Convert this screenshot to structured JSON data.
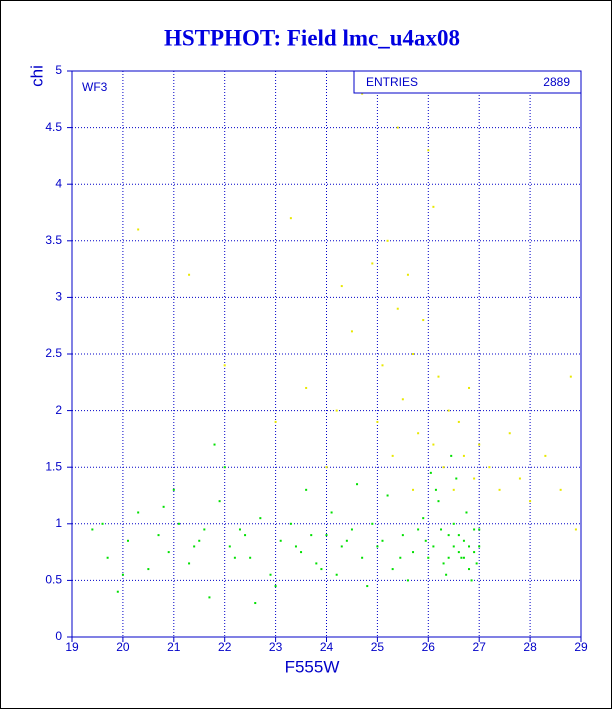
{
  "chart_data": {
    "type": "scatter",
    "title": "HSTPHOT: Field lmc_u4ax08",
    "x_label": "F555W",
    "y_label": "chi",
    "annotation": "WF3",
    "stats": {
      "label": "ENTRIES",
      "value": 2889
    },
    "xlim": [
      19,
      29
    ],
    "ylim": [
      0,
      5
    ],
    "xticks": [
      19,
      20,
      21,
      22,
      23,
      24,
      25,
      26,
      27,
      28,
      29
    ],
    "yticks": [
      0,
      0.5,
      1,
      1.5,
      2,
      2.5,
      3,
      3.5,
      4,
      4.5,
      5
    ],
    "grid": true,
    "series": [
      {
        "color": "#00e000",
        "x": [
          19.4,
          19.7,
          19.9,
          20.1,
          20.3,
          20.5,
          20.7,
          20.9,
          21.1,
          21.3,
          21.5,
          21.7,
          21.9,
          22.1,
          22.3,
          22.5,
          22.7,
          22.9,
          23.1,
          23.3,
          23.5,
          23.7,
          23.9,
          24.1,
          24.3,
          24.5,
          24.7,
          24.9,
          25.1,
          25.3,
          25.5,
          25.7,
          25.9,
          26.1,
          26.2,
          26.3,
          26.4,
          26.5,
          26.6,
          26.7,
          26.8,
          26.9,
          27.0,
          26.55,
          26.45,
          26.65,
          26.75,
          26.85,
          26.35,
          26.25,
          21.0,
          22.0,
          21.8,
          23.6,
          24.8,
          25.6,
          25.2,
          24.2,
          23.0,
          22.6,
          20.0,
          19.6,
          25.8,
          26.0,
          24.6,
          23.8,
          22.4,
          21.6,
          20.8,
          26.95,
          26.15,
          26.05,
          25.95,
          25.45,
          24.4,
          23.4,
          22.2,
          21.4,
          24.0,
          25.0,
          26.6,
          26.7,
          26.8,
          26.9,
          27.0,
          26.5,
          26.4
        ],
        "y": [
          0.95,
          0.7,
          0.4,
          0.85,
          1.1,
          0.6,
          0.9,
          0.75,
          1.0,
          0.65,
          0.85,
          0.35,
          1.2,
          0.8,
          0.95,
          0.7,
          1.05,
          0.55,
          0.85,
          1.0,
          0.75,
          0.9,
          0.6,
          1.1,
          0.8,
          0.95,
          0.7,
          1.0,
          0.85,
          0.6,
          0.9,
          0.75,
          1.05,
          0.8,
          1.2,
          0.65,
          0.9,
          1.0,
          0.75,
          0.85,
          0.6,
          0.95,
          0.8,
          1.4,
          1.6,
          0.7,
          1.1,
          0.5,
          0.55,
          0.95,
          1.3,
          1.5,
          1.7,
          1.3,
          0.45,
          0.5,
          1.25,
          0.55,
          0.45,
          0.3,
          0.55,
          1.0,
          0.95,
          0.7,
          1.35,
          0.65,
          0.9,
          0.95,
          1.15,
          0.65,
          1.3,
          1.45,
          0.85,
          0.7,
          0.85,
          0.8,
          0.7,
          0.8,
          0.9,
          0.8,
          0.9,
          0.7,
          0.8,
          0.75,
          0.95,
          0.8,
          0.7
        ]
      },
      {
        "color": "#e8e800",
        "x": [
          23.3,
          23.6,
          24.0,
          24.3,
          24.5,
          24.7,
          24.9,
          25.0,
          25.1,
          25.2,
          25.3,
          25.4,
          25.5,
          25.6,
          25.7,
          25.8,
          25.9,
          26.0,
          26.1,
          26.2,
          26.3,
          26.4,
          26.5,
          26.6,
          26.7,
          26.8,
          26.9,
          27.0,
          27.2,
          27.4,
          27.6,
          27.8,
          28.0,
          28.3,
          28.6,
          28.8,
          28.9,
          25.4,
          24.2,
          26.1,
          22.0,
          21.3,
          20.3,
          23.0,
          25.7
        ],
        "y": [
          3.7,
          2.2,
          1.5,
          3.1,
          2.7,
          4.8,
          3.3,
          1.9,
          2.4,
          3.5,
          1.6,
          2.9,
          2.1,
          3.2,
          2.5,
          1.8,
          2.8,
          4.3,
          1.7,
          2.3,
          1.5,
          2.0,
          1.3,
          1.9,
          1.6,
          2.2,
          1.4,
          1.7,
          1.5,
          1.3,
          1.8,
          1.4,
          1.2,
          1.6,
          1.3,
          2.3,
          0.95,
          4.5,
          2.0,
          3.8,
          2.4,
          3.2,
          3.6,
          1.9,
          1.3
        ]
      }
    ]
  }
}
